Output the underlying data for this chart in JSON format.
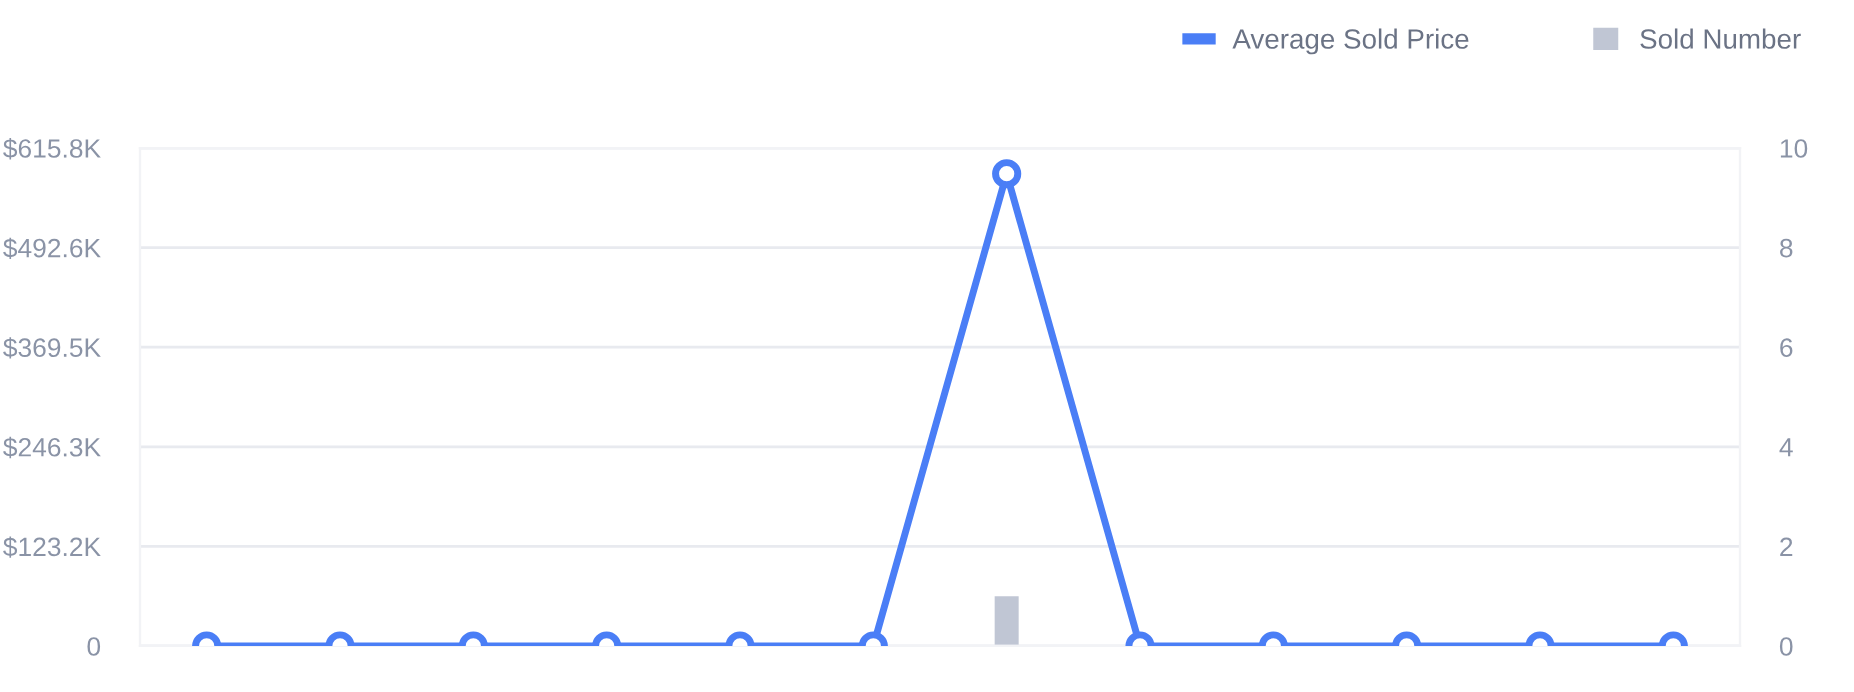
{
  "chart_data": {
    "type": "line",
    "categories": [
      null,
      null,
      null,
      null,
      null,
      null,
      null,
      null,
      null,
      null,
      null,
      null
    ],
    "series": [
      {
        "name": "Average Sold Price",
        "color": "#4a7ef6",
        "marker": "circle",
        "values": [
          0,
          0,
          0,
          0,
          0,
          0,
          584000,
          0,
          0,
          0,
          0,
          0
        ]
      },
      {
        "name": "Sold Number",
        "type": "bar",
        "color": "#c0c6d4",
        "axis": "y2",
        "values": [
          0,
          0,
          0,
          0,
          0,
          0,
          1,
          0,
          0,
          0,
          0,
          0
        ]
      }
    ],
    "ylim": [
      0,
      615800
    ],
    "yticks": [
      0,
      {
        "value": 123160,
        "label": "$123.2K"
      },
      {
        "value": 246320,
        "label": "$246.3K"
      },
      {
        "value": 369480,
        "label": "$369.5K"
      },
      {
        "value": 492640,
        "label": "$492.6K"
      },
      {
        "value": 615800,
        "label": "$615.8K"
      }
    ],
    "y2lim": [
      0,
      10
    ],
    "y2ticks": [
      0,
      2,
      4,
      6,
      8,
      10
    ],
    "grid": "y",
    "legend": "top right",
    "line_style": "solid"
  }
}
